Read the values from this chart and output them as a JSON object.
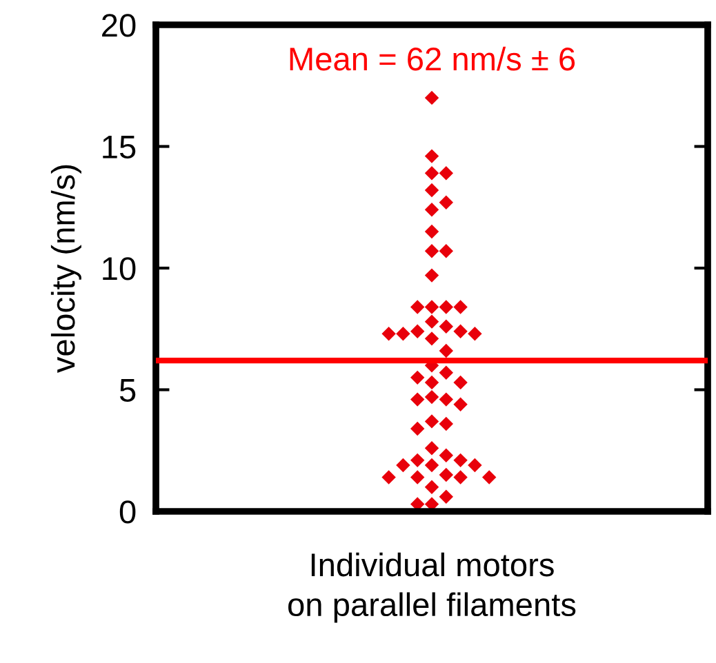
{
  "chart_data": {
    "type": "scatter",
    "xlabel": "Individual motors\non parallel filaments",
    "ylabel": "velocity (nm/s)",
    "categories": [
      null
    ],
    "series": [
      {
        "color": "#e8000b",
        "x": [
          null,
          null,
          null,
          null,
          null,
          null,
          null,
          null,
          null,
          null,
          null,
          null,
          null,
          null,
          null,
          null,
          null,
          null,
          null,
          null,
          null,
          null,
          null,
          null,
          null,
          null,
          null,
          null,
          null,
          null,
          null,
          null,
          null,
          null,
          null,
          null,
          null,
          null,
          null,
          null,
          null,
          null,
          null,
          null,
          null,
          null,
          null,
          null,
          null,
          null,
          null,
          null
        ],
        "values": [
          17.0,
          14.6,
          13.9,
          13.9,
          13.2,
          12.7,
          12.4,
          11.5,
          10.7,
          10.7,
          9.7,
          8.4,
          8.4,
          8.4,
          8.4,
          7.8,
          7.6,
          7.4,
          7.4,
          7.3,
          7.3,
          7.3,
          7.1,
          6.6,
          6.0,
          5.7,
          5.5,
          5.3,
          5.3,
          4.7,
          4.6,
          4.6,
          4.4,
          3.7,
          3.6,
          3.4,
          2.6,
          2.3,
          2.1,
          2.1,
          1.9,
          1.9,
          1.9,
          1.5,
          1.4,
          1.4,
          1.4,
          1.4,
          1.0,
          0.6,
          0.3,
          0.3
        ]
      }
    ],
    "marker": "diamond",
    "ylim": [
      0,
      20
    ],
    "yticks": [
      0,
      5,
      10,
      15,
      20
    ],
    "ref_lines": [
      {
        "axis": "y",
        "value": 6.2,
        "color": "#ff0000"
      }
    ],
    "annotations": [
      "Mean = 62 nm/s ± 6"
    ],
    "grid": false
  }
}
